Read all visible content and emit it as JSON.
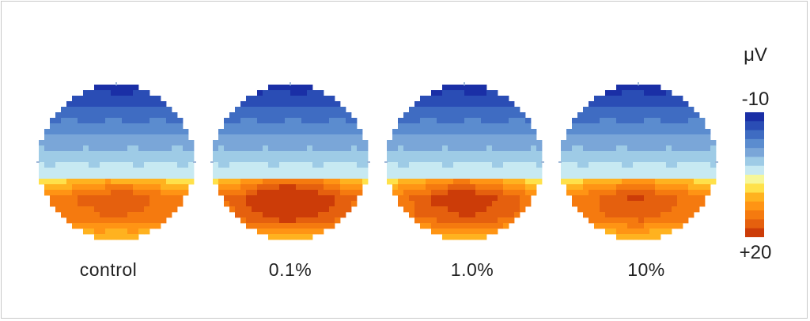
{
  "conditions": [
    {
      "label": "control",
      "max_intensity": 0.55
    },
    {
      "label": "0.1%",
      "max_intensity": 1.0
    },
    {
      "label": "1.0%",
      "max_intensity": 0.8
    },
    {
      "label": "10%",
      "max_intensity": 0.6
    }
  ],
  "colorbar": {
    "unit": "μV",
    "top_label": "-10",
    "bottom_label": "+20",
    "min": -10,
    "max": 20,
    "colors": [
      "#1a2fa6",
      "#2a4db5",
      "#3f6cc2",
      "#5b8ccf",
      "#7aa6d8",
      "#9ecbe6",
      "#c7e9f2",
      "#f6f79a",
      "#ffe14a",
      "#ffb21f",
      "#ff9414",
      "#f57a0f",
      "#e5600e",
      "#cc3c08"
    ]
  },
  "frame_color": "#c8c8c8"
}
